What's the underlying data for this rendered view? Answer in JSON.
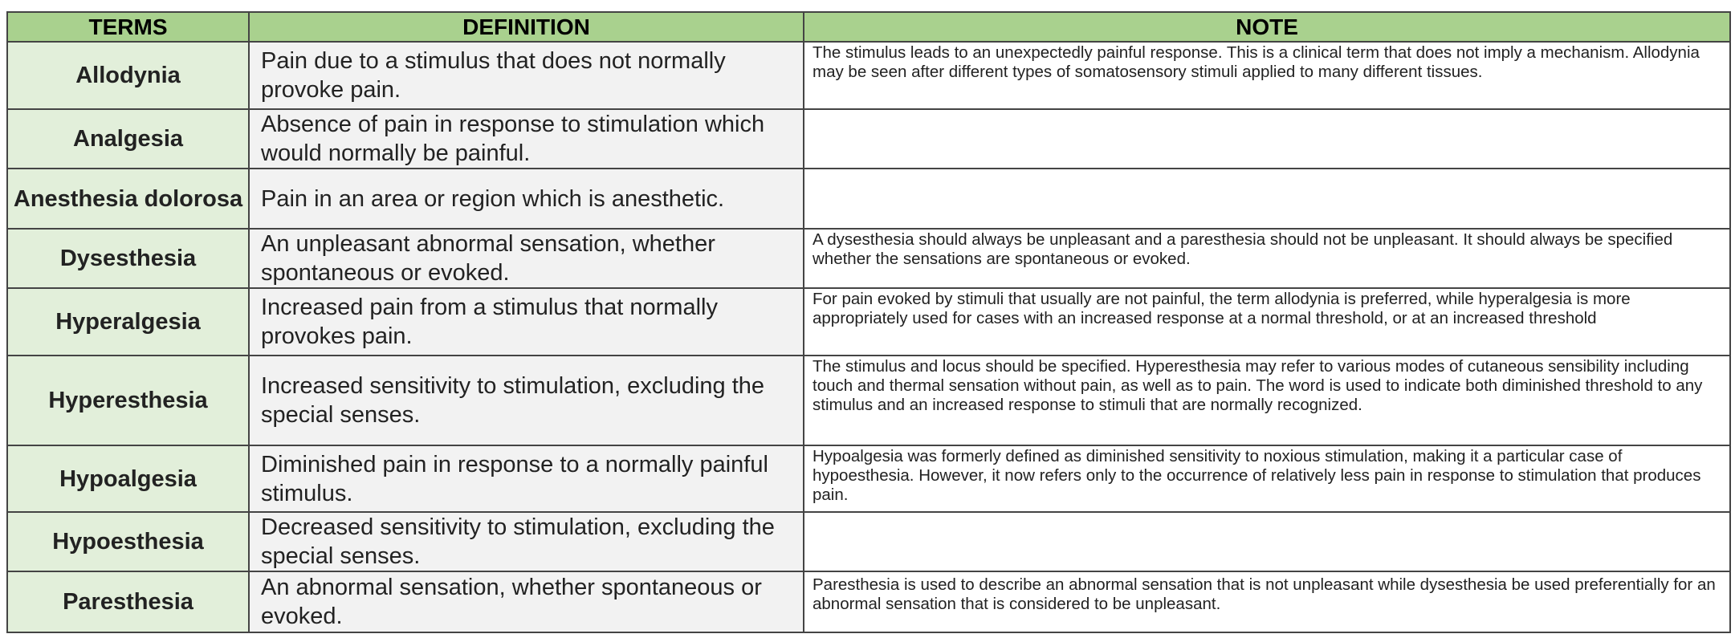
{
  "header": {
    "terms": "TERMS",
    "definition": "DEFINITION",
    "note": "NOTE"
  },
  "rows": [
    {
      "term": "Allodynia",
      "definition": "Pain due to a stimulus that does not normally provoke pain.",
      "note": "The stimulus leads to an unexpectedly painful response. This is a clinical term that does not imply a mechanism. Allodynia may be seen after different types of somatosensory stimuli applied to many different tissues."
    },
    {
      "term": "Analgesia",
      "definition": "Absence of pain in response to stimulation which would normally be painful.",
      "note": ""
    },
    {
      "term": "Anesthesia dolorosa",
      "definition": "Pain in an area or region which is anesthetic.",
      "note": ""
    },
    {
      "term": "Dysesthesia",
      "definition": "An unpleasant abnormal sensation, whether spontaneous or evoked.",
      "note": "A dysesthesia should always be unpleasant and a paresthesia should not be unpleasant. It should always be specified whether the sensations are spontaneous or evoked."
    },
    {
      "term": "Hyperalgesia",
      "definition": "Increased pain from a stimulus that normally provokes pain.",
      "note": "For pain evoked by stimuli that usually are not painful, the term allodynia is preferred, while hyperalgesia is more appropriately used for cases with an increased response at a normal threshold, or at an increased threshold"
    },
    {
      "term": "Hyperesthesia",
      "definition": "Increased sensitivity to stimulation, excluding the special senses.",
      "note": "The stimulus and locus should be specified. Hyperesthesia may refer to various modes of cutaneous sensibility including touch and thermal sensation without pain, as well as to pain. The word is used to indicate both diminished threshold to any stimulus and an increased response to stimuli that are normally recognized."
    },
    {
      "term": "Hypoalgesia",
      "definition": "Diminished pain in response to a normally painful stimulus.",
      "note": "Hypoalgesia was formerly defined as diminished sensitivity to noxious stimulation, making it a particular case of hypoesthesia. However, it now refers only to the occurrence of relatively less pain in response to stimulation that produces pain."
    },
    {
      "term": "Hypoesthesia",
      "definition": "Decreased sensitivity to stimulation, excluding the special senses.",
      "note": ""
    },
    {
      "term": "Paresthesia",
      "definition": "An abnormal sensation, whether spontaneous or evoked.",
      "note": "Paresthesia is used to describe an abnormal sensation that is not unpleasant while dysesthesia be used preferentially for an abnormal sensation that is considered to be unpleasant."
    }
  ],
  "colors": {
    "header_bg": "#a9d18e",
    "term_bg": "#e2efda",
    "definition_bg": "#f2f2f2",
    "note_bg": "#ffffff",
    "border": "#444444"
  }
}
